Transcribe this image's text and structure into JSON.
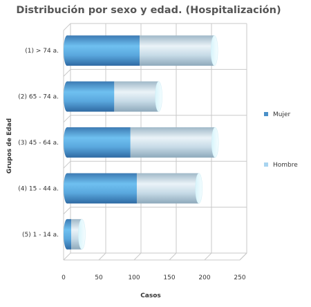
{
  "chart_data": {
    "type": "bar",
    "orientation": "horizontal",
    "stacked": true,
    "style": "3d-cylinder",
    "title": "Distribución por sexo y edad. (Hospitalización)",
    "xlabel": "Casos",
    "ylabel": "Grupos de Edad",
    "categories": [
      "(1) > 74 a.",
      "(2) 65 - 74 a.",
      "(3) 45 - 64 a.",
      "(4) 15 - 44 a.",
      "(5) 1 - 14 a."
    ],
    "series": [
      {
        "name": "Mujer",
        "values": [
          103,
          67,
          90,
          99,
          6
        ],
        "color": "#4a90c8"
      },
      {
        "name": "Hombre",
        "values": [
          106,
          63,
          120,
          88,
          15
        ],
        "color": "#a8d4f0"
      }
    ],
    "xlim": [
      0,
      250
    ],
    "xticks": [
      0,
      50,
      100,
      150,
      200,
      250
    ],
    "grid": true,
    "legend_position": "right"
  }
}
